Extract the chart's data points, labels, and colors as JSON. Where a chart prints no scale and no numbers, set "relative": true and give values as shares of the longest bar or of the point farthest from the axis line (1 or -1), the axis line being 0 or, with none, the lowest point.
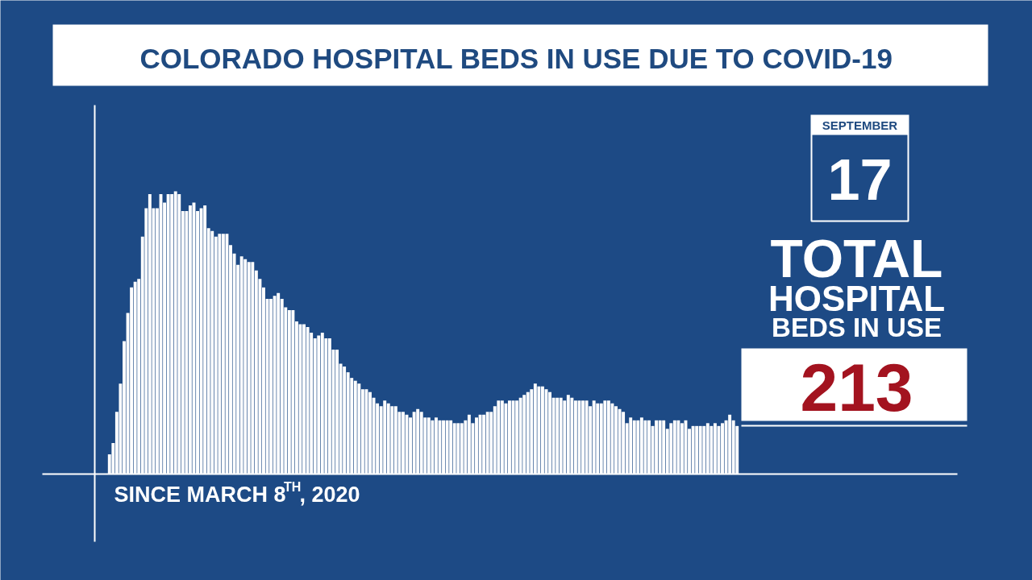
{
  "chart_data": {
    "type": "bar",
    "title": "COLORADO HOSPITAL BEDS IN USE DUE TO COVID-19",
    "relative": true,
    "color": "#ffffff",
    "grid": false,
    "annotations": [
      "SINCE MARCH 8$^{TH}$, 2020",
      "SEPTEMBER",
      "17",
      "TOTAL",
      "HOSPITAL",
      "BEDS IN USE",
      "213"
    ],
    "categories": [
      null,
      null,
      null,
      null,
      null,
      null,
      null,
      null,
      null,
      null,
      null,
      null,
      null,
      null,
      null,
      null,
      null,
      null,
      null,
      null,
      null,
      null,
      null,
      null,
      null,
      null,
      null,
      null,
      null,
      null,
      null,
      null,
      null,
      null,
      null,
      null,
      null,
      null,
      null,
      null,
      null,
      null,
      null,
      null,
      null,
      null,
      null,
      null,
      null,
      null,
      null,
      null,
      null,
      null,
      null,
      null,
      null,
      null,
      null,
      null,
      null,
      null,
      null,
      null,
      null,
      null,
      null,
      null,
      null,
      null,
      null,
      null,
      null,
      null,
      null,
      null,
      null,
      null,
      null,
      null,
      null,
      null,
      null,
      null,
      null,
      null,
      null,
      null,
      null,
      null,
      null,
      null,
      null,
      null,
      null,
      null,
      null,
      null,
      null,
      null,
      null,
      null,
      null,
      null,
      null,
      null,
      null,
      null,
      null,
      null,
      null,
      null,
      null,
      null,
      null,
      null,
      null,
      null,
      null,
      null,
      null,
      null,
      null,
      null,
      null,
      null,
      null,
      null,
      null,
      null,
      null,
      null,
      null,
      null,
      null,
      null,
      null,
      null,
      null,
      null,
      null,
      null,
      null,
      null,
      null,
      null,
      null,
      null,
      null,
      null,
      null,
      null,
      null,
      null,
      null,
      null,
      null,
      null,
      null,
      null,
      null,
      null,
      null,
      null,
      null,
      null,
      null,
      null,
      null,
      null,
      null,
      null
    ],
    "values": [
      0.07,
      0.11,
      0.22,
      0.32,
      0.47,
      0.57,
      0.66,
      0.68,
      0.69,
      0.84,
      0.94,
      0.99,
      0.94,
      0.94,
      0.99,
      0.96,
      0.99,
      0.99,
      1,
      0.99,
      0.93,
      0.93,
      0.95,
      0.96,
      0.93,
      0.94,
      0.95,
      0.87,
      0.86,
      0.84,
      0.85,
      0.85,
      0.85,
      0.81,
      0.78,
      0.74,
      0.77,
      0.76,
      0.75,
      0.75,
      0.72,
      0.69,
      0.66,
      0.62,
      0.62,
      0.63,
      0.64,
      0.62,
      0.59,
      0.58,
      0.58,
      0.54,
      0.53,
      0.53,
      0.52,
      0.5,
      0.48,
      0.49,
      0.5,
      0.48,
      0.48,
      0.44,
      0.44,
      0.39,
      0.38,
      0.36,
      0.34,
      0.33,
      0.32,
      0.3,
      0.3,
      0.29,
      0.27,
      0.25,
      0.24,
      0.26,
      0.25,
      0.24,
      0.24,
      0.22,
      0.22,
      0.21,
      0.2,
      0.22,
      0.23,
      0.22,
      0.2,
      0.2,
      0.19,
      0.2,
      0.19,
      0.19,
      0.19,
      0.19,
      0.18,
      0.18,
      0.18,
      0.19,
      0.21,
      0.18,
      0.2,
      0.21,
      0.21,
      0.22,
      0.22,
      0.24,
      0.26,
      0.26,
      0.25,
      0.26,
      0.26,
      0.26,
      0.27,
      0.28,
      0.29,
      0.3,
      0.32,
      0.31,
      0.31,
      0.3,
      0.29,
      0.27,
      0.27,
      0.27,
      0.26,
      0.28,
      0.27,
      0.26,
      0.26,
      0.26,
      0.26,
      0.24,
      0.26,
      0.25,
      0.25,
      0.26,
      0.26,
      0.25,
      0.24,
      0.23,
      0.22,
      0.18,
      0.2,
      0.19,
      0.19,
      0.2,
      0.19,
      0.19,
      0.17,
      0.19,
      0.19,
      0.19,
      0.16,
      0.18,
      0.19,
      0.19,
      0.18,
      0.19,
      0.16,
      0.17,
      0.17,
      0.17,
      0.17,
      0.18,
      0.17,
      0.18,
      0.17,
      0.18,
      0.19,
      0.21,
      0.19,
      0.17
    ]
  }
}
